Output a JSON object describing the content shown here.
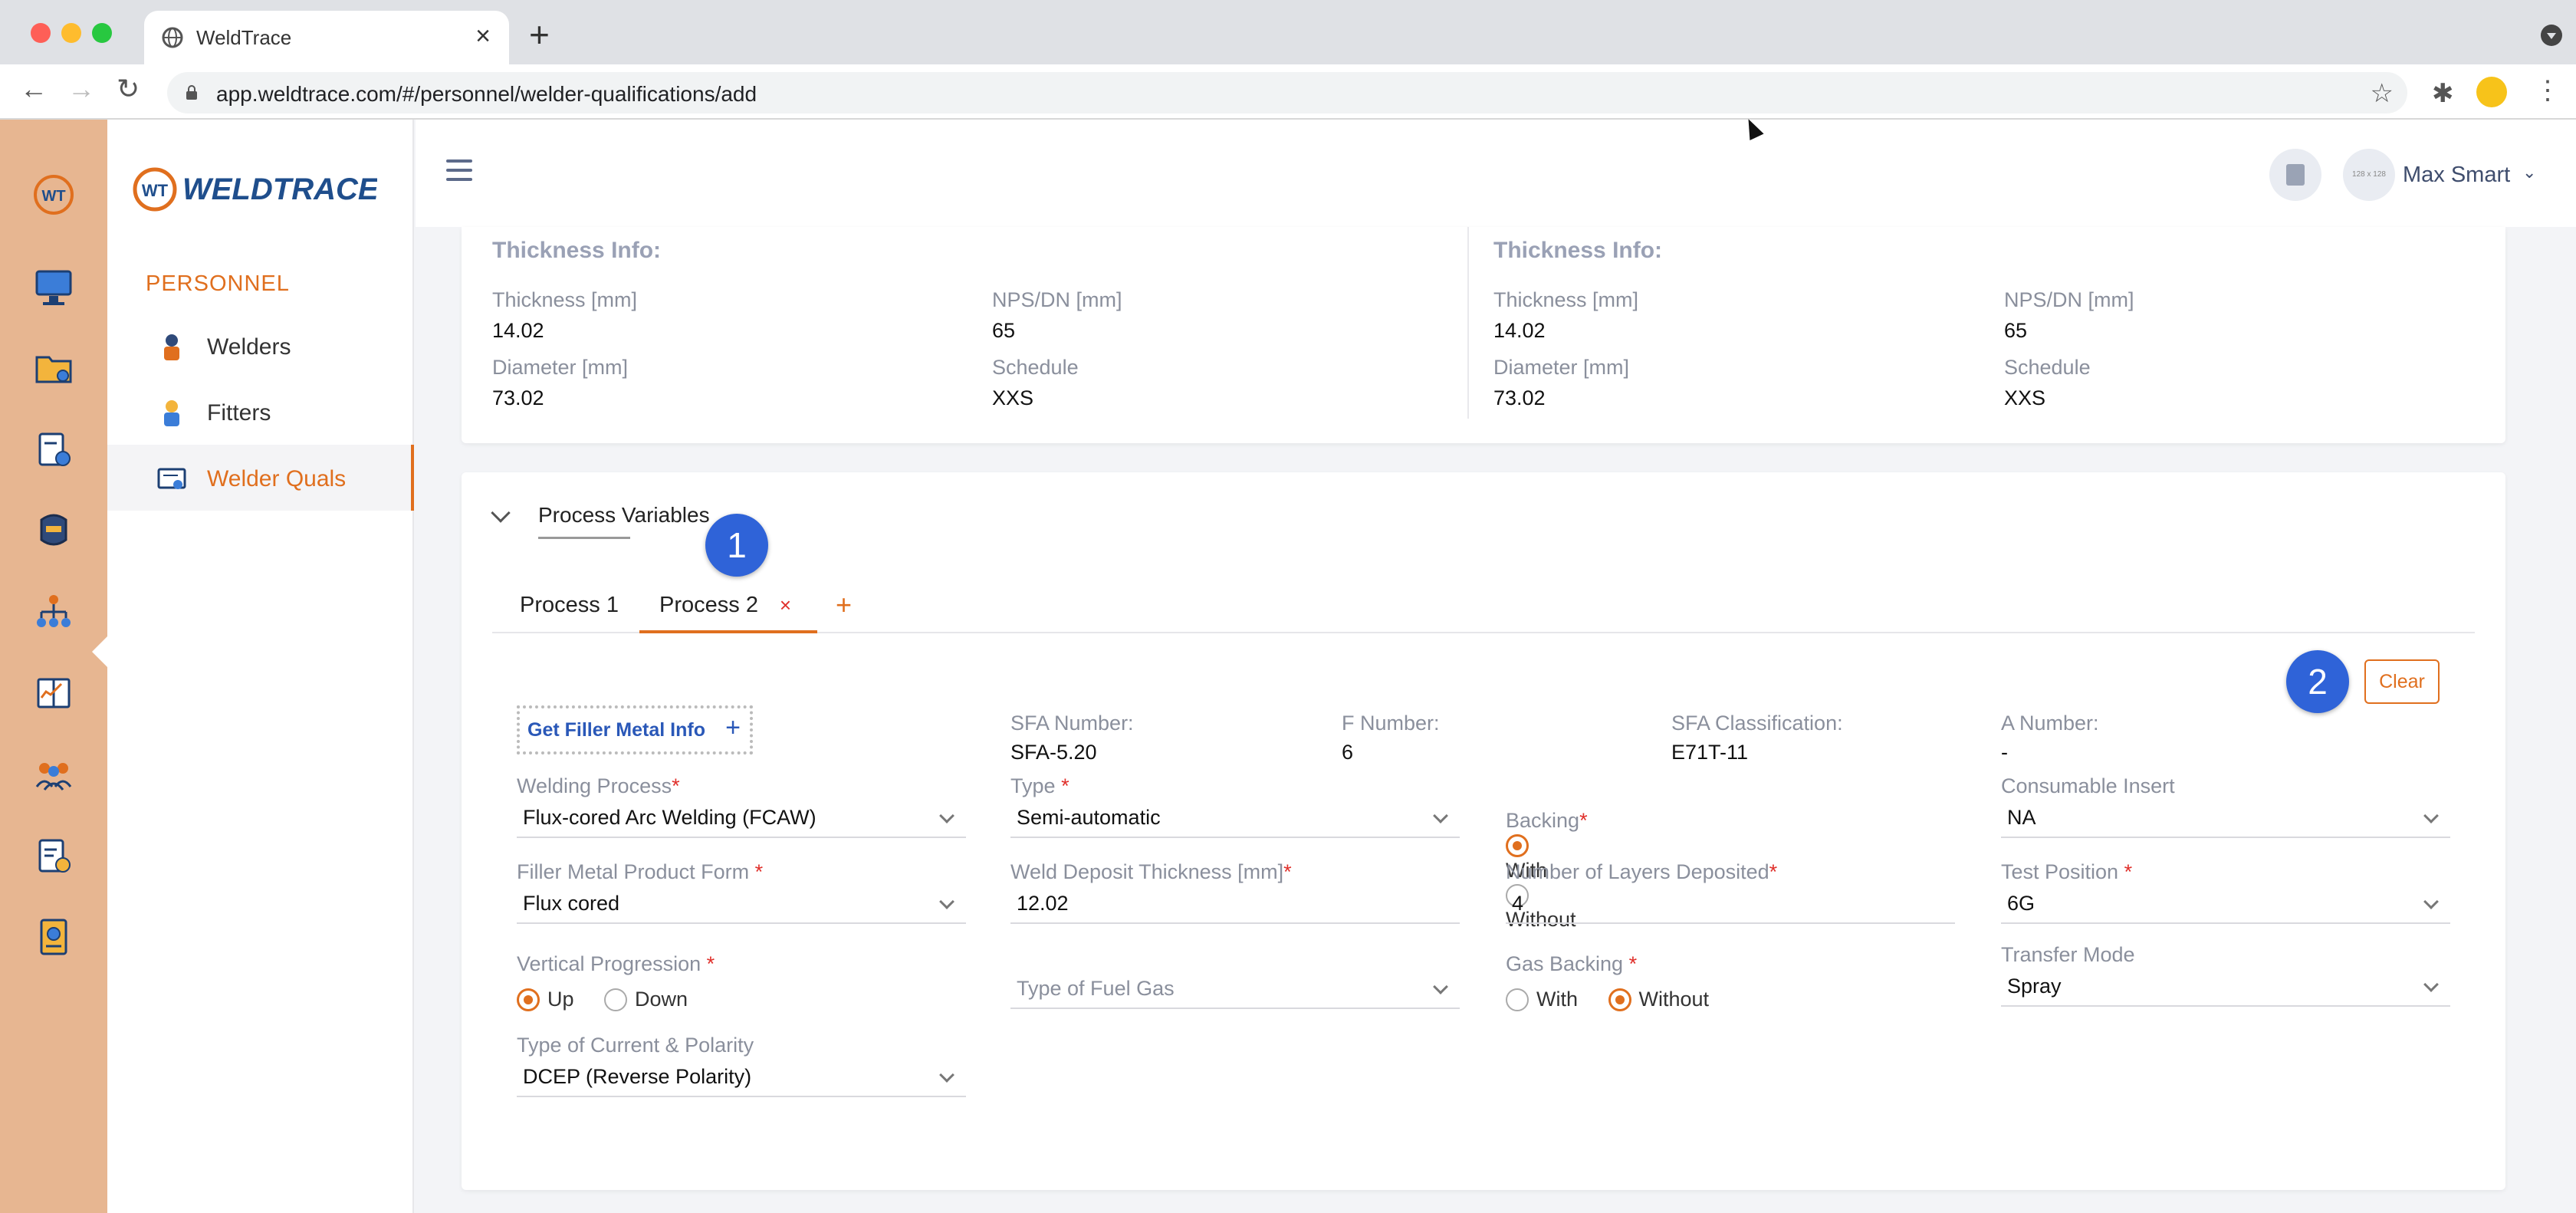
{
  "browser": {
    "tab_title": "WeldTrace",
    "url": "app.weldtrace.com/#/personnel/welder-qualifications/add"
  },
  "sidebar": {
    "logo_text": "WELDTRACE",
    "section": "PERSONNEL",
    "items": [
      {
        "label": "Welders"
      },
      {
        "label": "Fitters"
      },
      {
        "label": "Welder Quals"
      }
    ]
  },
  "header": {
    "avatar_placeholder": "128 x 128",
    "user_name": "Max Smart"
  },
  "thickness": [
    {
      "title": "Thickness Info:",
      "thickness_label": "Thickness [mm]",
      "thickness_value": "14.02",
      "nps_label": "NPS/DN [mm]",
      "nps_value": "65",
      "diameter_label": "Diameter [mm]",
      "diameter_value": "73.02",
      "schedule_label": "Schedule",
      "schedule_value": "XXS"
    },
    {
      "title": "Thickness Info:",
      "thickness_label": "Thickness [mm]",
      "thickness_value": "14.02",
      "nps_label": "NPS/DN [mm]",
      "nps_value": "65",
      "diameter_label": "Diameter [mm]",
      "diameter_value": "73.02",
      "schedule_label": "Schedule",
      "schedule_value": "XXS"
    }
  ],
  "process_variables": {
    "title": "Process Variables",
    "badge1": "1",
    "badge2": "2",
    "tabs": [
      {
        "label": "Process 1"
      },
      {
        "label": "Process 2"
      }
    ],
    "tab_close": "×",
    "tab_add": "+",
    "clear_label": "Clear",
    "get_filler_label": "Get Filler Metal Info",
    "get_filler_plus": "+",
    "sfa_number_label": "SFA Number:",
    "sfa_number_value": "SFA-5.20",
    "f_number_label": "F Number:",
    "f_number_value": "6",
    "sfa_class_label": "SFA Classification:",
    "sfa_class_value": "E71T-11",
    "a_number_label": "A Number:",
    "a_number_value": "-",
    "welding_process_label": "Welding Process",
    "welding_process_value": "Flux-cored Arc Welding (FCAW)",
    "type_label": "Type",
    "type_value": "Semi-automatic",
    "backing_label": "Backing",
    "backing_with": "With",
    "backing_without": "Without",
    "consumable_label": "Consumable Insert",
    "consumable_value": "NA",
    "filler_form_label": "Filler Metal Product Form",
    "filler_form_value": "Flux cored",
    "deposit_label": "Weld Deposit Thickness [mm]",
    "deposit_value": "12.02",
    "layers_label": "Number of Layers Deposited",
    "layers_value": "4",
    "test_position_label": "Test Position",
    "test_position_value": "6G",
    "vertical_label": "Vertical Progression",
    "vertical_up": "Up",
    "vertical_down": "Down",
    "fuel_gas_placeholder": "Type of Fuel Gas",
    "gas_backing_label": "Gas Backing",
    "gas_with": "With",
    "gas_without": "Without",
    "transfer_label": "Transfer Mode",
    "transfer_value": "Spray",
    "current_label": "Type of Current & Polarity",
    "current_value": "DCEP (Reverse Polarity)",
    "required_mark": "*"
  },
  "colors": {
    "accent": "#e06f1e",
    "rail": "#e7b691",
    "badge": "#2f63d8"
  }
}
